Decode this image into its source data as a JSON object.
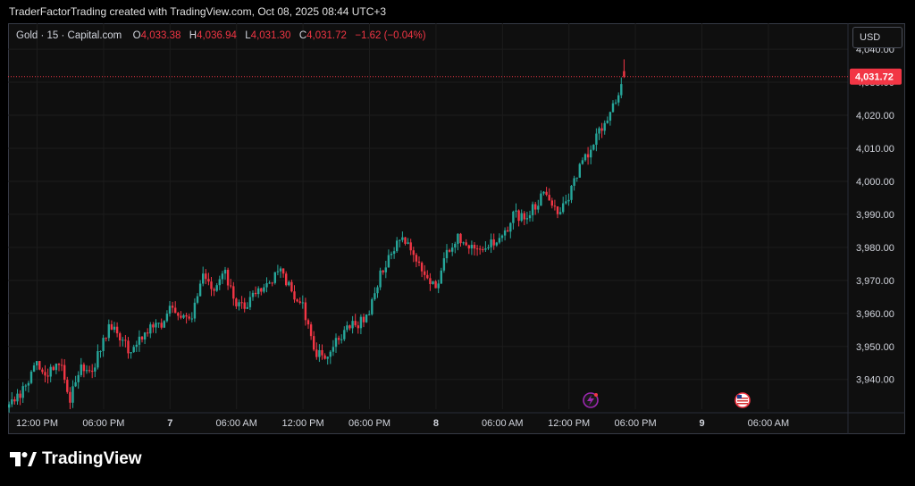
{
  "header": {
    "credit": "TraderFactorTrading created with TradingView.com, Oct 08, 2025 08:44 UTC+3"
  },
  "legend": {
    "symbol": "Gold · 15 · Capital.com",
    "o_label": "O",
    "o_value": "4,033.38",
    "h_label": "H",
    "h_value": "4,036.94",
    "l_label": "L",
    "l_value": "4,031.30",
    "c_label": "C",
    "c_value": "4,031.72",
    "change": "−1.62 (−0.04%)"
  },
  "currency": "USD",
  "brand": {
    "name": "TradingView"
  },
  "colors": {
    "up": "#26a69a",
    "down": "#f23645",
    "background": "#0f0f0f",
    "grid": "#1c1c1c",
    "text": "#d1d4dc",
    "price_tag": "#f23645"
  },
  "icons": {
    "event_lightning": "lightning-event-icon",
    "event_us_flag": "us-flag-event-icon"
  },
  "chart_data": {
    "type": "candlestick",
    "instrument": "Gold",
    "interval": "15",
    "source": "Capital.com",
    "price_axis": {
      "range": [
        3931,
        4043
      ],
      "ticks": [
        3940,
        3950,
        3960,
        3970,
        3980,
        3990,
        4000,
        4010,
        4020,
        4030,
        4040
      ],
      "tick_labels": [
        "3,940.00",
        "3,950.00",
        "3,960.00",
        "3,970.00",
        "3,980.00",
        "3,990.00",
        "4,000.00",
        "4,010.00",
        "4,020.00",
        "4,030.00",
        "4,040.00"
      ]
    },
    "time_axis": {
      "labels": [
        "12:00 PM",
        "06:00 PM",
        "7",
        "06:00 AM",
        "12:00 PM",
        "06:00 PM",
        "8",
        "06:00 AM",
        "12:00 PM",
        "06:00 PM",
        "9",
        "06:00 AM"
      ],
      "label_bars": [
        10,
        34,
        58,
        82,
        106,
        130,
        154,
        178,
        202,
        226,
        250,
        274
      ]
    },
    "last_price": 4031.72,
    "last_price_label": "4,031.72",
    "grid": true,
    "path": [
      [
        0,
        3932
      ],
      [
        6,
        3938
      ],
      [
        10,
        3945
      ],
      [
        14,
        3941
      ],
      [
        18,
        3946
      ],
      [
        22,
        3934
      ],
      [
        26,
        3944
      ],
      [
        30,
        3943
      ],
      [
        36,
        3956
      ],
      [
        40,
        3953
      ],
      [
        44,
        3948
      ],
      [
        48,
        3953
      ],
      [
        52,
        3957
      ],
      [
        56,
        3957
      ],
      [
        58,
        3962
      ],
      [
        62,
        3960
      ],
      [
        66,
        3959
      ],
      [
        70,
        3971
      ],
      [
        74,
        3967
      ],
      [
        78,
        3972
      ],
      [
        82,
        3962
      ],
      [
        86,
        3962
      ],
      [
        90,
        3968
      ],
      [
        94,
        3968
      ],
      [
        98,
        3974
      ],
      [
        102,
        3966
      ],
      [
        106,
        3963
      ],
      [
        110,
        3948
      ],
      [
        114,
        3947
      ],
      [
        118,
        3951
      ],
      [
        122,
        3956
      ],
      [
        126,
        3957
      ],
      [
        130,
        3960
      ],
      [
        134,
        3972
      ],
      [
        138,
        3978
      ],
      [
        142,
        3983
      ],
      [
        146,
        3977
      ],
      [
        150,
        3972
      ],
      [
        154,
        3968
      ],
      [
        158,
        3978
      ],
      [
        162,
        3983
      ],
      [
        166,
        3981
      ],
      [
        170,
        3980
      ],
      [
        174,
        3981
      ],
      [
        178,
        3982
      ],
      [
        182,
        3990
      ],
      [
        186,
        3989
      ],
      [
        190,
        3993
      ],
      [
        194,
        3997
      ],
      [
        198,
        3991
      ],
      [
        202,
        3995
      ],
      [
        206,
        4004
      ],
      [
        210,
        4010
      ],
      [
        214,
        4016
      ],
      [
        218,
        4023
      ],
      [
        222,
        4031
      ]
    ],
    "bar_count": 223,
    "last_bar": {
      "open": 4033.38,
      "high": 4036.94,
      "low": 4031.3,
      "close": 4031.72,
      "change": -1.62,
      "change_pct": -0.04
    }
  }
}
